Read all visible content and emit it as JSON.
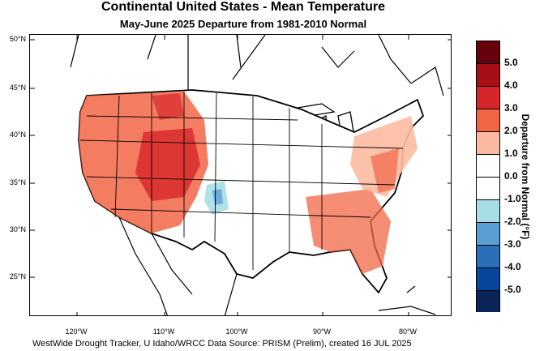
{
  "title": "Continental United States - Mean Temperature",
  "subtitle": "May-June 2025  Departure from 1981-2010 Normal",
  "lat_labels": [
    "50°N",
    "45°N",
    "40°N",
    "35°N",
    "30°N",
    "25°N"
  ],
  "lon_labels": [
    "120°W",
    "110°W",
    "100°W",
    "90°W",
    "80°W"
  ],
  "footer": "WestWide Drought Tracker, U Idaho/WRCC Data Source: PRISM (Prelim), created 16 JUL 2025",
  "legend": {
    "title": "Departure from Normal (°F)",
    "labels": [
      "5.0",
      "4.0",
      "3.0",
      "2.0",
      "1.0",
      "0.0",
      "-1.0",
      "-2.0",
      "-3.0",
      "-4.0",
      "-5.0"
    ],
    "colors": [
      "#67000d",
      "#a50f15",
      "#d7262b",
      "#f16545",
      "#fcbba1",
      "#ffffff",
      "#ffffff",
      "#a7dde5",
      "#5a9fd4",
      "#2a70b8",
      "#08469c",
      "#0b2559"
    ]
  }
}
